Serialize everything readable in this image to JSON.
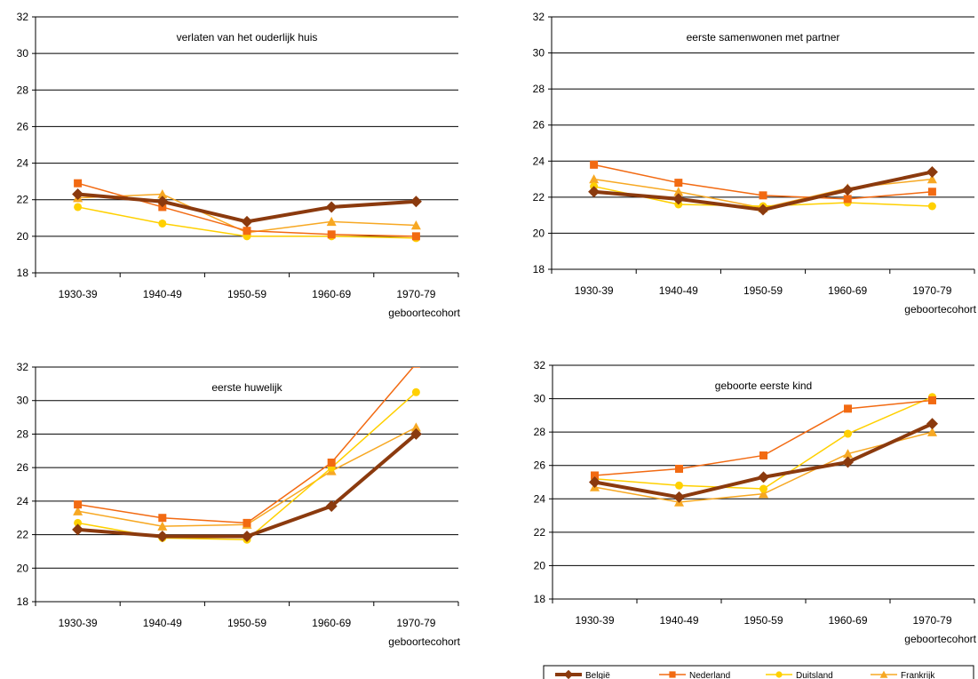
{
  "x_axis_label": "geboortecohort",
  "colors": {
    "België": "#8b3a0e",
    "Nederland": "#f26a12",
    "Duitsland": "#ffd000",
    "Frankrijk": "#f7a823"
  },
  "legend": [
    "België",
    "Nederland",
    "Duitsland",
    "Frankrijk"
  ],
  "chart_data": [
    {
      "type": "line",
      "title": "verlaten van het ouderlijk huis",
      "categories": [
        "1930-39",
        "1940-49",
        "1950-59",
        "1960-69",
        "1970-79"
      ],
      "xlabel": "geboortecohort",
      "ylim": [
        18,
        32
      ],
      "yticks": [
        18,
        20,
        22,
        24,
        26,
        28,
        30,
        32
      ],
      "grid": true,
      "series": [
        {
          "name": "België",
          "values": [
            22.3,
            21.9,
            20.8,
            21.6,
            21.9
          ]
        },
        {
          "name": "Nederland",
          "values": [
            22.9,
            21.6,
            20.3,
            20.1,
            20.0
          ]
        },
        {
          "name": "Duitsland",
          "values": [
            21.6,
            20.7,
            20.0,
            20.0,
            19.9
          ]
        },
        {
          "name": "Frankrijk",
          "values": [
            22.1,
            22.3,
            20.2,
            20.8,
            20.6
          ]
        }
      ]
    },
    {
      "type": "line",
      "title": "eerste samenwonen met partner",
      "categories": [
        "1930-39",
        "1940-49",
        "1950-59",
        "1960-69",
        "1970-79"
      ],
      "xlabel": "geboortecohort",
      "ylim": [
        18,
        32
      ],
      "yticks": [
        18,
        20,
        22,
        24,
        26,
        28,
        30,
        32
      ],
      "grid": true,
      "series": [
        {
          "name": "België",
          "values": [
            22.3,
            21.9,
            21.3,
            22.4,
            23.4
          ]
        },
        {
          "name": "Nederland",
          "values": [
            23.8,
            22.8,
            22.1,
            21.9,
            22.3
          ]
        },
        {
          "name": "Duitsland",
          "values": [
            22.6,
            21.6,
            21.5,
            21.7,
            21.5
          ]
        },
        {
          "name": "Frankrijk",
          "values": [
            23.0,
            22.3,
            21.4,
            22.5,
            23.0
          ]
        }
      ]
    },
    {
      "type": "line",
      "title": "eerste huwelijk",
      "categories": [
        "1930-39",
        "1940-49",
        "1950-59",
        "1960-69",
        "1970-79"
      ],
      "xlabel": "geboortecohort",
      "ylim": [
        18,
        32
      ],
      "yticks": [
        18,
        20,
        22,
        24,
        26,
        28,
        30,
        32
      ],
      "grid": true,
      "series": [
        {
          "name": "België",
          "values": [
            22.3,
            21.9,
            21.9,
            23.7,
            28.0
          ]
        },
        {
          "name": "Nederland",
          "values": [
            23.8,
            23.0,
            22.7,
            26.3,
            32.2
          ]
        },
        {
          "name": "Duitsland",
          "values": [
            22.7,
            21.8,
            21.7,
            26.0,
            30.5
          ]
        },
        {
          "name": "Frankrijk",
          "values": [
            23.4,
            22.5,
            22.6,
            25.8,
            28.4
          ]
        }
      ]
    },
    {
      "type": "line",
      "title": "geboorte eerste kind",
      "categories": [
        "1930-39",
        "1940-49",
        "1950-59",
        "1960-69",
        "1970-79"
      ],
      "xlabel": "geboortecohort",
      "ylim": [
        18,
        32
      ],
      "yticks": [
        18,
        20,
        22,
        24,
        26,
        28,
        30,
        32
      ],
      "grid": true,
      "series": [
        {
          "name": "België",
          "values": [
            25.0,
            24.1,
            25.3,
            26.2,
            28.5
          ]
        },
        {
          "name": "Nederland",
          "values": [
            25.4,
            25.8,
            26.6,
            29.4,
            29.9
          ]
        },
        {
          "name": "Duitsland",
          "values": [
            25.2,
            24.8,
            24.6,
            27.9,
            30.1
          ]
        },
        {
          "name": "Frankrijk",
          "values": [
            24.7,
            23.8,
            24.3,
            26.7,
            28.0
          ]
        }
      ]
    }
  ]
}
